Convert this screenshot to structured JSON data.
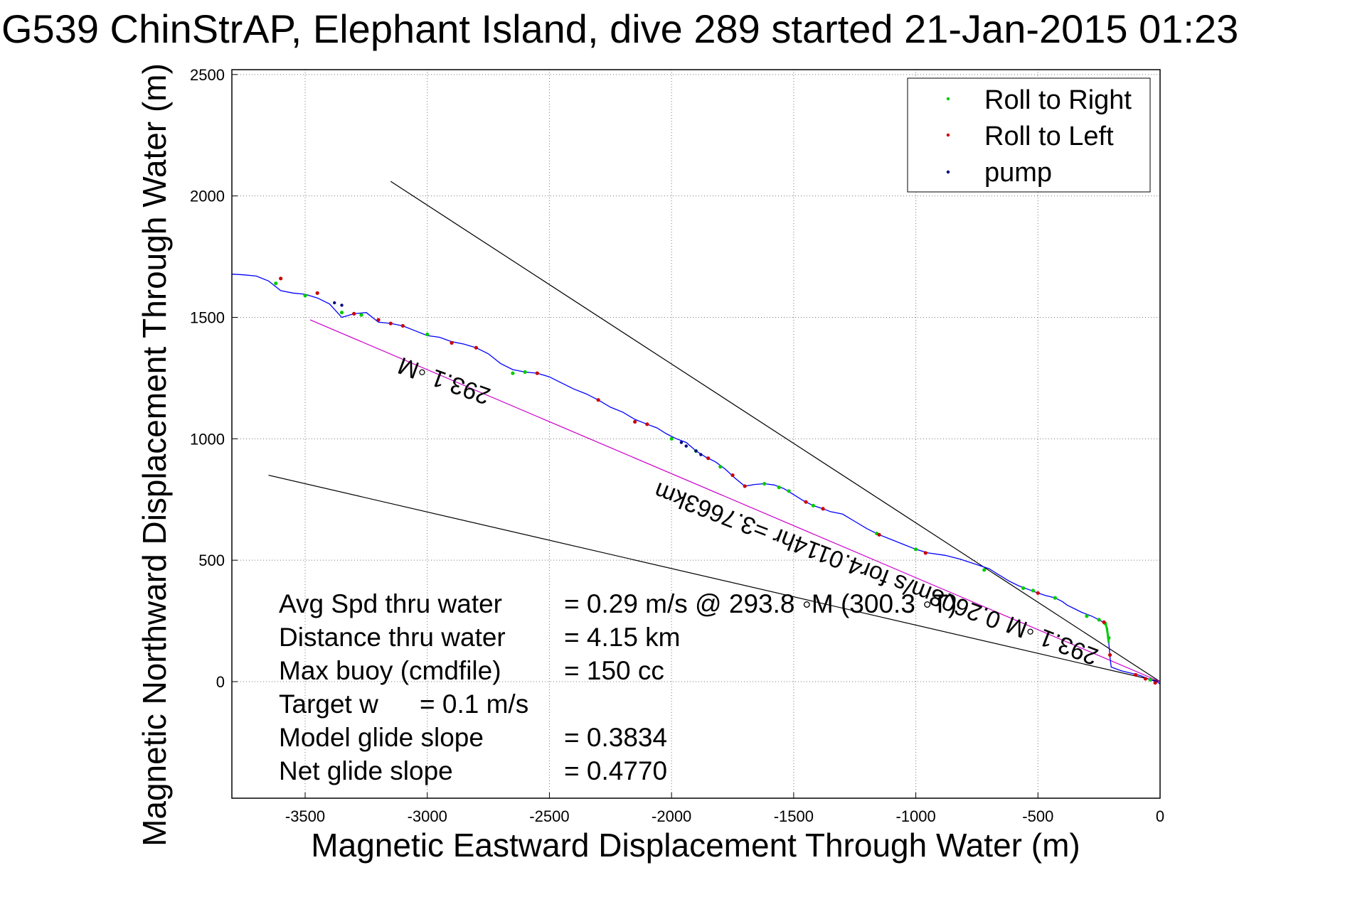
{
  "chart_data": {
    "type": "line",
    "title": "G539 ChinStrAP, Elephant Island, dive 289 started 21-Jan-2015 01:23",
    "xlabel": "Magnetic Eastward Displacement Through Water (m)",
    "ylabel": "Magnetic Northward Displacement Through Water (m)",
    "xlim": [
      -3800,
      0
    ],
    "ylim": [
      -480,
      2520
    ],
    "xticks": [
      -3500,
      -3000,
      -2500,
      -2000,
      -1500,
      -1000,
      -500,
      0
    ],
    "yticks": [
      0,
      500,
      1000,
      1500,
      2000,
      2500
    ],
    "grid": true,
    "legend_position": "top-right",
    "legend": [
      {
        "label": "Roll to Right",
        "color": "#00cc00"
      },
      {
        "label": "Roll to Left",
        "color": "#cc0000"
      },
      {
        "label": "pump",
        "color": "#000080"
      }
    ],
    "track": {
      "color": "#0000ff",
      "x": [
        0,
        -10,
        -40,
        -80,
        -120,
        -160,
        -200,
        -205,
        -210,
        -215,
        -225,
        -250,
        -280,
        -320,
        -350,
        -380,
        -400,
        -430,
        -470,
        -500,
        -540,
        -580,
        -620,
        -660,
        -700,
        -760,
        -820,
        -880,
        -950,
        -1000,
        -1050,
        -1100,
        -1150,
        -1200,
        -1250,
        -1300,
        -1350,
        -1380,
        -1420,
        -1460,
        -1500,
        -1540,
        -1580,
        -1620,
        -1660,
        -1700,
        -1740,
        -1780,
        -1820,
        -1860,
        -1900,
        -1940,
        -1980,
        -2020,
        -2060,
        -2100,
        -2150,
        -2200,
        -2250,
        -2300,
        -2350,
        -2400,
        -2450,
        -2500,
        -2550,
        -2600,
        -2650,
        -2700,
        -2750,
        -2800,
        -2850,
        -2900,
        -2950,
        -3000,
        -3050,
        -3100,
        -3150,
        -3200,
        -3250,
        -3300,
        -3350,
        -3400,
        -3450,
        -3500,
        -3550,
        -3600,
        -3650,
        -3700,
        -3750,
        -3800
      ],
      "y": [
        -10,
        -2,
        8,
        25,
        35,
        45,
        60,
        100,
        160,
        220,
        240,
        255,
        270,
        285,
        300,
        315,
        330,
        345,
        355,
        365,
        380,
        395,
        415,
        440,
        465,
        485,
        505,
        520,
        530,
        545,
        565,
        585,
        605,
        630,
        660,
        690,
        700,
        712,
        725,
        745,
        770,
        795,
        810,
        815,
        812,
        805,
        838,
        875,
        905,
        925,
        950,
        985,
        1000,
        1020,
        1045,
        1060,
        1080,
        1110,
        1130,
        1160,
        1185,
        1205,
        1230,
        1255,
        1270,
        1275,
        1285,
        1310,
        1350,
        1375,
        1390,
        1400,
        1418,
        1425,
        1445,
        1465,
        1475,
        1480,
        1520,
        1515,
        1500,
        1555,
        1580,
        1595,
        1600,
        1610,
        1650,
        1670,
        1675,
        1678
      ]
    },
    "green_segments": [
      {
        "x": [
          -210,
          -215,
          -218,
          -222,
          -225
        ],
        "y": [
          160,
          200,
          220,
          235,
          240
        ]
      }
    ],
    "markers": {
      "roll_right_x": [
        -40,
        -210,
        -225,
        -250,
        -300,
        -430,
        -520,
        -560,
        -720,
        -1000,
        -1160,
        -1420,
        -1520,
        -1560,
        -1620,
        -1800,
        -1900,
        -2000,
        -2600,
        -2650,
        -3000,
        -3270,
        -3350,
        -3620,
        -3500
      ],
      "roll_right_y": [
        8,
        180,
        240,
        255,
        270,
        345,
        375,
        385,
        460,
        545,
        610,
        725,
        785,
        800,
        815,
        885,
        950,
        1000,
        1275,
        1270,
        1430,
        1510,
        1520,
        1640,
        1590
      ],
      "roll_left_x": [
        -20,
        -60,
        -100,
        -205,
        -230,
        -500,
        -960,
        -1150,
        -1380,
        -1450,
        -1700,
        -1750,
        -1850,
        -2100,
        -2150,
        -2300,
        -2550,
        -2800,
        -2900,
        -3100,
        -3150,
        -3200,
        -3450,
        -3600,
        -3300
      ],
      "roll_left_y": [
        -5,
        12,
        28,
        110,
        245,
        365,
        530,
        605,
        712,
        740,
        805,
        850,
        920,
        1060,
        1070,
        1160,
        1270,
        1375,
        1395,
        1465,
        1475,
        1490,
        1600,
        1660,
        1515
      ],
      "pump_x": [
        -1880,
        -1900,
        -1940,
        -1960,
        -3350,
        -3380
      ],
      "pump_y": [
        935,
        950,
        970,
        985,
        1550,
        1560
      ]
    },
    "lines": [
      {
        "name": "heading_line_upper",
        "color": "#000000",
        "x": [
          0,
          -3150
        ],
        "y": [
          0,
          2060
        ]
      },
      {
        "name": "heading_line_lower",
        "color": "#000000",
        "x": [
          0,
          -3650
        ],
        "y": [
          0,
          850
        ]
      },
      {
        "name": "net_line",
        "color": "#cc00cc",
        "x": [
          0,
          -3480
        ],
        "y": [
          0,
          1490
        ]
      }
    ],
    "rotated_annotations": [
      {
        "text": "293.1 ◦M",
        "x": -2920,
        "y": 1270,
        "angle": 20
      },
      {
        "text": "0.2608m/s for4.0114hr =3.7663km",
        "x": -1350,
        "y": 550,
        "angle": 21
      },
      {
        "text": "293.1 ◦M",
        "x": -430,
        "y": 200,
        "angle": 21
      }
    ],
    "stats": [
      {
        "label": "Avg Spd thru water",
        "value": "=  0.29 m/s @ 293.8 ◦M (300.3 ◦T)"
      },
      {
        "label": "Distance thru water",
        "value": "=  4.15 km"
      },
      {
        "label": "Max buoy (cmdfile)",
        "value": "= 150 cc"
      },
      {
        "label": "Target w",
        "value": "= 0.1 m/s"
      },
      {
        "label": "Model glide slope",
        "value": "= 0.3834"
      },
      {
        "label": "Net glide slope",
        "value": "= 0.4770"
      }
    ]
  }
}
